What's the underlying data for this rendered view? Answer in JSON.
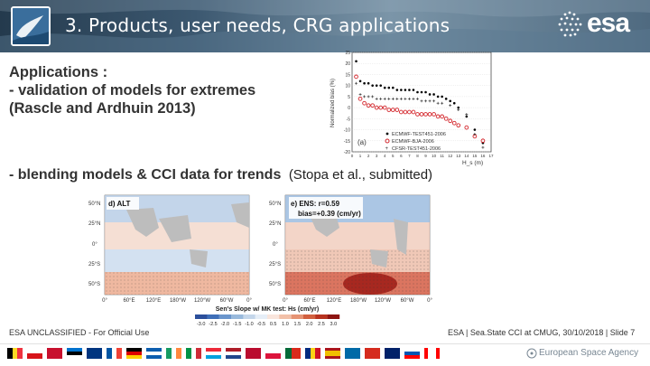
{
  "header": {
    "title": "3. Products, user needs, CRG applications",
    "brand": "esa"
  },
  "content": {
    "lines": [
      "Applications :",
      "- validation of models for extremes",
      "(Rascle and Ardhuin 2013)"
    ],
    "blend_text": "- blending models & CCI data for trends",
    "blend_cite": "(Stopa et al., submitted)"
  },
  "chart_top": {
    "ylabel": "Normalized bias (%)",
    "xlabel": "H_s (m)",
    "panel_label": "(a)",
    "yticks": [
      "25",
      "20",
      "15",
      "10",
      "5",
      "0",
      "-5",
      "-10",
      "-15",
      "-20"
    ],
    "xticks": [
      "0",
      "1",
      "2",
      "3",
      "4",
      "5",
      "6",
      "7",
      "8",
      "9",
      "10",
      "11",
      "12",
      "13",
      "14",
      "15",
      "16",
      "17"
    ],
    "legend": [
      "ECMWF-TEST451-2006",
      "ECMWF-BJA-2006",
      "CFSR-TEST451-2006"
    ]
  },
  "chart_data": {
    "type": "scatter",
    "xlabel": "H_s (m)",
    "ylabel": "Normalized bias (%)",
    "xlim": [
      0,
      17
    ],
    "ylim": [
      -20,
      25
    ],
    "series": [
      {
        "name": "ECMWF-TEST451-2006",
        "marker": "black-dot",
        "x": [
          0.5,
          1,
          1.5,
          2,
          2.5,
          3,
          3.5,
          4,
          4.5,
          5,
          5.5,
          6,
          6.5,
          7,
          7.5,
          8,
          8.5,
          9,
          9.5,
          10,
          10.5,
          11,
          11.5,
          12,
          12.5,
          13,
          14,
          15,
          16
        ],
        "y": [
          21,
          12,
          11,
          11,
          10,
          10,
          10,
          9,
          9,
          9,
          8,
          8,
          8,
          8,
          8,
          7,
          7,
          7,
          6,
          6,
          5,
          5,
          4,
          3,
          2,
          0,
          -4,
          -10,
          -16
        ]
      },
      {
        "name": "ECMWF-BJA-2006",
        "marker": "red-circle",
        "x": [
          0.5,
          1,
          1.5,
          2,
          2.5,
          3,
          3.5,
          4,
          4.5,
          5,
          5.5,
          6,
          6.5,
          7,
          7.5,
          8,
          8.5,
          9,
          9.5,
          10,
          10.5,
          11,
          11.5,
          12,
          12.5,
          13,
          14,
          15,
          16
        ],
        "y": [
          14,
          4,
          2,
          1,
          1,
          0,
          0,
          0,
          -1,
          -1,
          -1,
          -2,
          -2,
          -2,
          -2,
          -3,
          -3,
          -3,
          -3,
          -3,
          -4,
          -4,
          -5,
          -6,
          -7,
          -8,
          -9,
          -13,
          -15
        ]
      },
      {
        "name": "CFSR-TEST451-2006",
        "marker": "cross",
        "x": [
          0.5,
          1,
          1.5,
          2,
          2.5,
          3,
          3.5,
          4,
          4.5,
          5,
          5.5,
          6,
          6.5,
          7,
          7.5,
          8,
          8.5,
          9,
          9.5,
          10,
          10.5,
          11,
          12,
          13,
          14,
          15,
          16
        ],
        "y": [
          11,
          6,
          5,
          5,
          5,
          4,
          4,
          4,
          4,
          4,
          4,
          4,
          4,
          4,
          4,
          4,
          3,
          3,
          3,
          3,
          2,
          2,
          1,
          -1,
          -3,
          -12,
          -18
        ]
      }
    ]
  },
  "maps": {
    "left_title": "d) ALT",
    "right_title_1": "e) ENS: r=0.59",
    "right_title_2": "bias=+0.39 (cm/yr)",
    "lat_labels": [
      "50°N",
      "25°N",
      "0°",
      "25°S",
      "50°S"
    ],
    "lon_labels": [
      "0°",
      "60°E",
      "120°E",
      "180°W",
      "120°W",
      "60°W",
      "0°"
    ],
    "colorbar_title": "Sen's Slope w/ MK test: Hs (cm/yr)",
    "colorbar_ticks": [
      "-3.0",
      "-2.5",
      "-2.0",
      "-1.5",
      "-1.0",
      "-0.5",
      "0.5",
      "1.0",
      "1.5",
      "2.0",
      "2.5",
      "3.0"
    ],
    "colorbar_colors": [
      "#2b4f9b",
      "#3f6fb8",
      "#6a95cc",
      "#98b9dc",
      "#c4d6ea",
      "#e6eef7",
      "#f9e5dc",
      "#f2c0a8",
      "#e69373",
      "#d2603f",
      "#b7321f",
      "#8d1412"
    ]
  },
  "footer": {
    "left": "ESA UNCLASSIFIED - For Official Use",
    "right": "ESA | Sea.State CCI at CMUG, 30/10/2018 | Slide  7",
    "agency": "European Space Agency"
  }
}
